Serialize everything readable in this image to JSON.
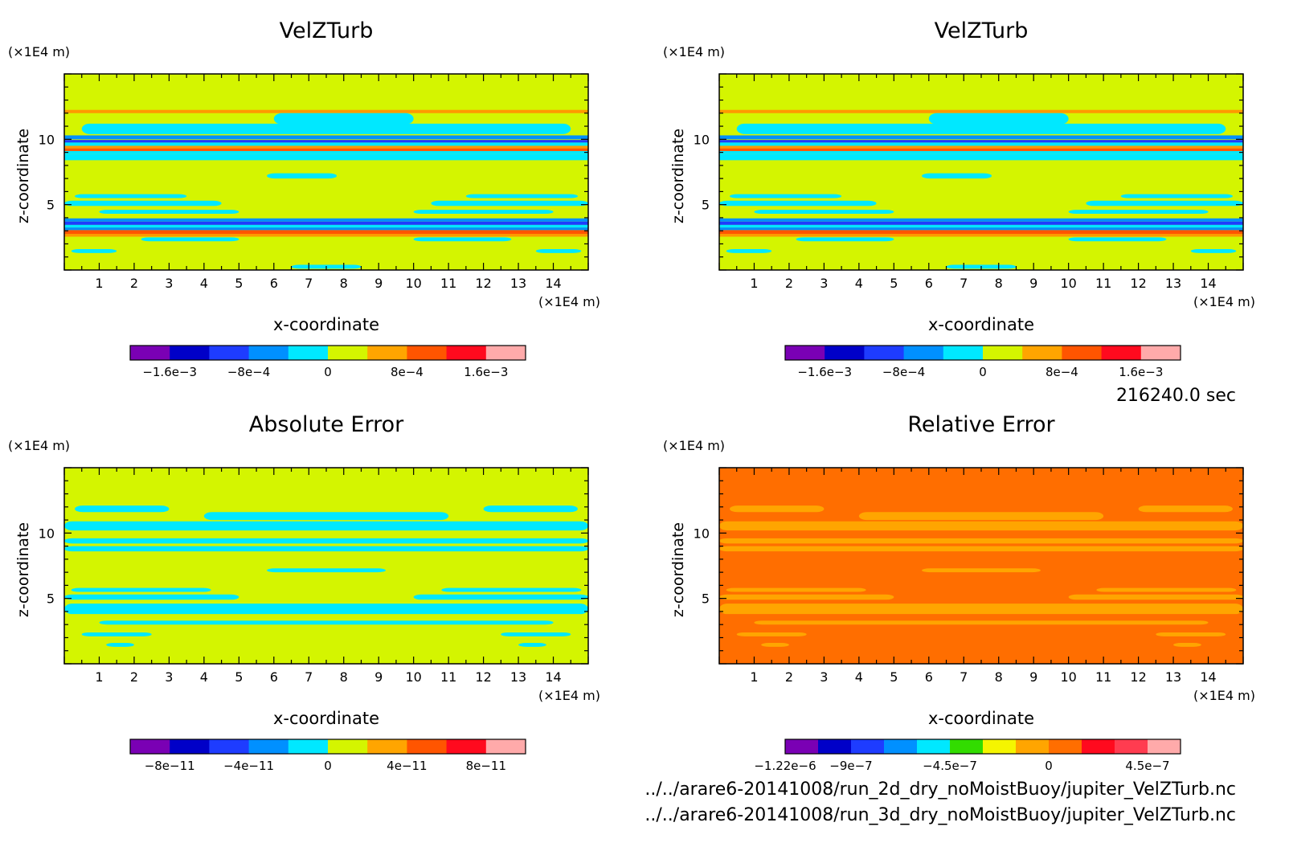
{
  "time_label": "216240.0 sec",
  "files": [
    "../../arare6-20141008/run_2d_dry_noMoistBuoy/jupiter_VelZTurb.nc",
    "../../arare6-20141008/run_3d_dry_noMoistBuoy/jupiter_VelZTurb.nc"
  ],
  "chart_data": [
    {
      "type": "heatmap",
      "title": "VelZTurb",
      "xlabel": "x-coordinate",
      "ylabel": "z-coordinate",
      "x_unit": "(×1E4 m)",
      "y_unit": "(×1E4 m)",
      "xlim": [
        0,
        15
      ],
      "ylim": [
        0,
        15
      ],
      "x_ticks": [
        1,
        2,
        3,
        4,
        5,
        6,
        7,
        8,
        9,
        10,
        11,
        12,
        13,
        14
      ],
      "y_ticks": [
        5,
        10
      ],
      "background": "#d4f500",
      "bands": [
        {
          "y": [
            12.0,
            12.25
          ],
          "c": "#ff9900"
        },
        {
          "y": [
            11.15,
            12.0
          ],
          "c": "#00e8ff",
          "x": [
            6,
            10
          ]
        },
        {
          "y": [
            10.4,
            11.2
          ],
          "c": "#00e8ff",
          "x": [
            0.5,
            14.5
          ]
        },
        {
          "y": [
            10.0,
            10.3
          ],
          "c": "#0090ff"
        },
        {
          "y": [
            9.75,
            9.95
          ],
          "c": "#1e3cff"
        },
        {
          "y": [
            9.5,
            9.75
          ],
          "c": "#00e8ff"
        },
        {
          "y": [
            9.3,
            9.5
          ],
          "c": "#ff9900"
        },
        {
          "y": [
            9.1,
            9.3
          ],
          "c": "#ff5500"
        },
        {
          "y": [
            8.9,
            9.1
          ],
          "c": "#00e8ff"
        },
        {
          "y": [
            8.4,
            8.9
          ],
          "c": "#00e8ff"
        },
        {
          "y": [
            7.0,
            7.4
          ],
          "c": "#00e8ff",
          "x": [
            5.8,
            7.8
          ]
        },
        {
          "y": [
            5.5,
            5.8
          ],
          "c": "#00e8ff",
          "x": [
            0.3,
            3.5
          ]
        },
        {
          "y": [
            5.5,
            5.8
          ],
          "c": "#00e8ff",
          "x": [
            11.5,
            14.7
          ]
        },
        {
          "y": [
            4.9,
            5.3
          ],
          "c": "#00e8ff",
          "x": [
            0,
            4.5
          ]
        },
        {
          "y": [
            4.9,
            5.3
          ],
          "c": "#00e8ff",
          "x": [
            10.5,
            15
          ]
        },
        {
          "y": [
            4.3,
            4.6
          ],
          "c": "#00e8ff",
          "x": [
            1,
            5
          ]
        },
        {
          "y": [
            4.3,
            4.6
          ],
          "c": "#00e8ff",
          "x": [
            10,
            14
          ]
        },
        {
          "y": [
            3.7,
            3.95
          ],
          "c": "#0090ff"
        },
        {
          "y": [
            3.45,
            3.7
          ],
          "c": "#1e3cff"
        },
        {
          "y": [
            3.25,
            3.45
          ],
          "c": "#00e8ff"
        },
        {
          "y": [
            3.05,
            3.25
          ],
          "c": "#0090ff"
        },
        {
          "y": [
            2.75,
            3.05
          ],
          "c": "#ff5500"
        },
        {
          "y": [
            2.55,
            2.75
          ],
          "c": "#ff9900"
        },
        {
          "y": [
            2.2,
            2.5
          ],
          "c": "#00e8ff",
          "x": [
            2.2,
            5
          ]
        },
        {
          "y": [
            2.2,
            2.5
          ],
          "c": "#00e8ff",
          "x": [
            10,
            12.8
          ]
        },
        {
          "y": [
            1.3,
            1.6
          ],
          "c": "#00e8ff",
          "x": [
            0.2,
            1.5
          ]
        },
        {
          "y": [
            1.3,
            1.6
          ],
          "c": "#00e8ff",
          "x": [
            13.5,
            14.8
          ]
        },
        {
          "y": [
            0.1,
            0.4
          ],
          "c": "#00e8ff",
          "x": [
            6.5,
            8.5
          ]
        }
      ],
      "colorbar": {
        "colors": [
          "#7a00b4",
          "#0000c8",
          "#1e3cff",
          "#0090ff",
          "#00e8ff",
          "#d4f500",
          "#ffa500",
          "#ff5500",
          "#ff0a1e",
          "#ffaaaa"
        ],
        "labels": [
          "−1.6e−3",
          "−8e−4",
          "0",
          "8e−4",
          "1.6e−3"
        ],
        "label_pos": [
          1,
          3,
          5,
          7,
          9
        ]
      }
    },
    {
      "type": "heatmap",
      "title": "VelZTurb",
      "xlabel": "x-coordinate",
      "ylabel": "z-coordinate",
      "x_unit": "(×1E4 m)",
      "y_unit": "(×1E4 m)",
      "xlim": [
        0,
        15
      ],
      "ylim": [
        0,
        15
      ],
      "x_ticks": [
        1,
        2,
        3,
        4,
        5,
        6,
        7,
        8,
        9,
        10,
        11,
        12,
        13,
        14
      ],
      "y_ticks": [
        5,
        10
      ],
      "background": "#d4f500",
      "bands": [
        {
          "y": [
            12.0,
            12.25
          ],
          "c": "#ff9900"
        },
        {
          "y": [
            11.15,
            12.0
          ],
          "c": "#00e8ff",
          "x": [
            6,
            10
          ]
        },
        {
          "y": [
            10.4,
            11.2
          ],
          "c": "#00e8ff",
          "x": [
            0.5,
            14.5
          ]
        },
        {
          "y": [
            10.0,
            10.3
          ],
          "c": "#0090ff"
        },
        {
          "y": [
            9.75,
            9.95
          ],
          "c": "#1e3cff"
        },
        {
          "y": [
            9.5,
            9.75
          ],
          "c": "#00e8ff"
        },
        {
          "y": [
            9.3,
            9.5
          ],
          "c": "#ff9900"
        },
        {
          "y": [
            9.1,
            9.3
          ],
          "c": "#ff5500"
        },
        {
          "y": [
            8.9,
            9.1
          ],
          "c": "#00e8ff"
        },
        {
          "y": [
            8.4,
            8.9
          ],
          "c": "#00e8ff"
        },
        {
          "y": [
            7.0,
            7.4
          ],
          "c": "#00e8ff",
          "x": [
            5.8,
            7.8
          ]
        },
        {
          "y": [
            5.5,
            5.8
          ],
          "c": "#00e8ff",
          "x": [
            0.3,
            3.5
          ]
        },
        {
          "y": [
            5.5,
            5.8
          ],
          "c": "#00e8ff",
          "x": [
            11.5,
            14.7
          ]
        },
        {
          "y": [
            4.9,
            5.3
          ],
          "c": "#00e8ff",
          "x": [
            0,
            4.5
          ]
        },
        {
          "y": [
            4.9,
            5.3
          ],
          "c": "#00e8ff",
          "x": [
            10.5,
            15
          ]
        },
        {
          "y": [
            4.3,
            4.6
          ],
          "c": "#00e8ff",
          "x": [
            1,
            5
          ]
        },
        {
          "y": [
            4.3,
            4.6
          ],
          "c": "#00e8ff",
          "x": [
            10,
            14
          ]
        },
        {
          "y": [
            3.7,
            3.95
          ],
          "c": "#0090ff"
        },
        {
          "y": [
            3.45,
            3.7
          ],
          "c": "#1e3cff"
        },
        {
          "y": [
            3.25,
            3.45
          ],
          "c": "#00e8ff"
        },
        {
          "y": [
            3.05,
            3.25
          ],
          "c": "#0090ff"
        },
        {
          "y": [
            2.75,
            3.05
          ],
          "c": "#ff5500"
        },
        {
          "y": [
            2.55,
            2.75
          ],
          "c": "#ff9900"
        },
        {
          "y": [
            2.2,
            2.5
          ],
          "c": "#00e8ff",
          "x": [
            2.2,
            5
          ]
        },
        {
          "y": [
            2.2,
            2.5
          ],
          "c": "#00e8ff",
          "x": [
            10,
            12.8
          ]
        },
        {
          "y": [
            1.3,
            1.6
          ],
          "c": "#00e8ff",
          "x": [
            0.2,
            1.5
          ]
        },
        {
          "y": [
            1.3,
            1.6
          ],
          "c": "#00e8ff",
          "x": [
            13.5,
            14.8
          ]
        },
        {
          "y": [
            0.1,
            0.4
          ],
          "c": "#00e8ff",
          "x": [
            6.5,
            8.5
          ]
        }
      ],
      "colorbar": {
        "colors": [
          "#7a00b4",
          "#0000c8",
          "#1e3cff",
          "#0090ff",
          "#00e8ff",
          "#d4f500",
          "#ffa500",
          "#ff5500",
          "#ff0a1e",
          "#ffaaaa"
        ],
        "labels": [
          "−1.6e−3",
          "−8e−4",
          "0",
          "8e−4",
          "1.6e−3"
        ],
        "label_pos": [
          1,
          3,
          5,
          7,
          9
        ]
      }
    },
    {
      "type": "heatmap",
      "title": "Absolute Error",
      "xlabel": "x-coordinate",
      "ylabel": "z-coordinate",
      "x_unit": "(×1E4 m)",
      "y_unit": "(×1E4 m)",
      "xlim": [
        0,
        15
      ],
      "ylim": [
        0,
        15
      ],
      "x_ticks": [
        1,
        2,
        3,
        4,
        5,
        6,
        7,
        8,
        9,
        10,
        11,
        12,
        13,
        14
      ],
      "y_ticks": [
        5,
        10
      ],
      "background": "#d4f500",
      "bands": [
        {
          "y": [
            11.6,
            12.1
          ],
          "c": "#00e8ff",
          "x": [
            0.3,
            3
          ]
        },
        {
          "y": [
            11.6,
            12.1
          ],
          "c": "#00e8ff",
          "x": [
            12,
            14.7
          ]
        },
        {
          "y": [
            11.0,
            11.6
          ],
          "c": "#00e8ff",
          "x": [
            4,
            11
          ]
        },
        {
          "y": [
            10.2,
            10.9
          ],
          "c": "#00e8ff",
          "x": [
            0,
            15
          ]
        },
        {
          "y": [
            9.2,
            9.6
          ],
          "c": "#00e8ff",
          "x": [
            0,
            15
          ]
        },
        {
          "y": [
            8.6,
            9.0
          ],
          "c": "#00e8ff",
          "x": [
            0,
            15
          ]
        },
        {
          "y": [
            7.0,
            7.3
          ],
          "c": "#00e8ff",
          "x": [
            5.8,
            9.2
          ]
        },
        {
          "y": [
            5.5,
            5.8
          ],
          "c": "#00e8ff",
          "x": [
            0.2,
            4.2
          ]
        },
        {
          "y": [
            5.5,
            5.8
          ],
          "c": "#00e8ff",
          "x": [
            10.8,
            14.8
          ]
        },
        {
          "y": [
            4.9,
            5.3
          ],
          "c": "#00e8ff",
          "x": [
            0,
            5
          ]
        },
        {
          "y": [
            4.9,
            5.3
          ],
          "c": "#00e8ff",
          "x": [
            10,
            15
          ]
        },
        {
          "y": [
            3.8,
            4.6
          ],
          "c": "#00e8ff",
          "x": [
            0,
            15
          ]
        },
        {
          "y": [
            3.0,
            3.3
          ],
          "c": "#00e8ff",
          "x": [
            1,
            14
          ]
        },
        {
          "y": [
            2.1,
            2.4
          ],
          "c": "#00e8ff",
          "x": [
            0.5,
            2.5
          ]
        },
        {
          "y": [
            2.1,
            2.4
          ],
          "c": "#00e8ff",
          "x": [
            12.5,
            14.5
          ]
        },
        {
          "y": [
            1.3,
            1.6
          ],
          "c": "#00e8ff",
          "x": [
            1.2,
            2
          ]
        },
        {
          "y": [
            1.3,
            1.6
          ],
          "c": "#00e8ff",
          "x": [
            13,
            13.8
          ]
        }
      ],
      "colorbar": {
        "colors": [
          "#7a00b4",
          "#0000c8",
          "#1e3cff",
          "#0090ff",
          "#00e8ff",
          "#d4f500",
          "#ffa500",
          "#ff5500",
          "#ff0a1e",
          "#ffaaaa"
        ],
        "labels": [
          "−8e−11",
          "−4e−11",
          "0",
          "4e−11",
          "8e−11"
        ],
        "label_pos": [
          1,
          3,
          5,
          7,
          9
        ]
      }
    },
    {
      "type": "heatmap",
      "title": "Relative Error",
      "xlabel": "x-coordinate",
      "ylabel": "z-coordinate",
      "x_unit": "(×1E4 m)",
      "y_unit": "(×1E4 m)",
      "xlim": [
        0,
        15
      ],
      "ylim": [
        0,
        15
      ],
      "x_ticks": [
        1,
        2,
        3,
        4,
        5,
        6,
        7,
        8,
        9,
        10,
        11,
        12,
        13,
        14
      ],
      "y_ticks": [
        5,
        10
      ],
      "background": "#ff6e00",
      "bands": [
        {
          "y": [
            11.6,
            12.1
          ],
          "c": "#ffa500",
          "x": [
            0.3,
            3
          ]
        },
        {
          "y": [
            11.6,
            12.1
          ],
          "c": "#ffa500",
          "x": [
            12,
            14.7
          ]
        },
        {
          "y": [
            11.0,
            11.6
          ],
          "c": "#ffa500",
          "x": [
            4,
            11
          ]
        },
        {
          "y": [
            10.2,
            10.9
          ],
          "c": "#ffa500",
          "x": [
            0,
            15
          ]
        },
        {
          "y": [
            9.2,
            9.6
          ],
          "c": "#ffa500",
          "x": [
            0,
            15
          ]
        },
        {
          "y": [
            8.6,
            9.0
          ],
          "c": "#ffa500",
          "x": [
            0,
            15
          ]
        },
        {
          "y": [
            7.0,
            7.3
          ],
          "c": "#ffa500",
          "x": [
            5.8,
            9.2
          ]
        },
        {
          "y": [
            5.5,
            5.8
          ],
          "c": "#ffa500",
          "x": [
            0.2,
            4.2
          ]
        },
        {
          "y": [
            5.5,
            5.8
          ],
          "c": "#ffa500",
          "x": [
            10.8,
            14.8
          ]
        },
        {
          "y": [
            4.9,
            5.3
          ],
          "c": "#ffa500",
          "x": [
            0,
            5
          ]
        },
        {
          "y": [
            4.9,
            5.3
          ],
          "c": "#ffa500",
          "x": [
            10,
            15
          ]
        },
        {
          "y": [
            3.8,
            4.6
          ],
          "c": "#ffa500",
          "x": [
            0,
            15
          ]
        },
        {
          "y": [
            3.0,
            3.3
          ],
          "c": "#ffa500",
          "x": [
            1,
            14
          ]
        },
        {
          "y": [
            2.1,
            2.4
          ],
          "c": "#ffa500",
          "x": [
            0.5,
            2.5
          ]
        },
        {
          "y": [
            2.1,
            2.4
          ],
          "c": "#ffa500",
          "x": [
            12.5,
            14.5
          ]
        },
        {
          "y": [
            1.3,
            1.6
          ],
          "c": "#ffa500",
          "x": [
            1.2,
            2
          ]
        },
        {
          "y": [
            1.3,
            1.6
          ],
          "c": "#ffa500",
          "x": [
            13,
            13.8
          ]
        }
      ],
      "colorbar": {
        "colors": [
          "#7a00b4",
          "#0000c8",
          "#1e3cff",
          "#0090ff",
          "#00e8ff",
          "#32dc00",
          "#f5f500",
          "#ffa500",
          "#ff6e00",
          "#ff0a1e",
          "#ff3c50",
          "#ffaaaa"
        ],
        "labels": [
          "−1.22e−6",
          "−9e−7",
          "−4.5e−7",
          "0",
          "4.5e−7"
        ],
        "label_pos": [
          0,
          2,
          5,
          8,
          11
        ]
      }
    }
  ]
}
